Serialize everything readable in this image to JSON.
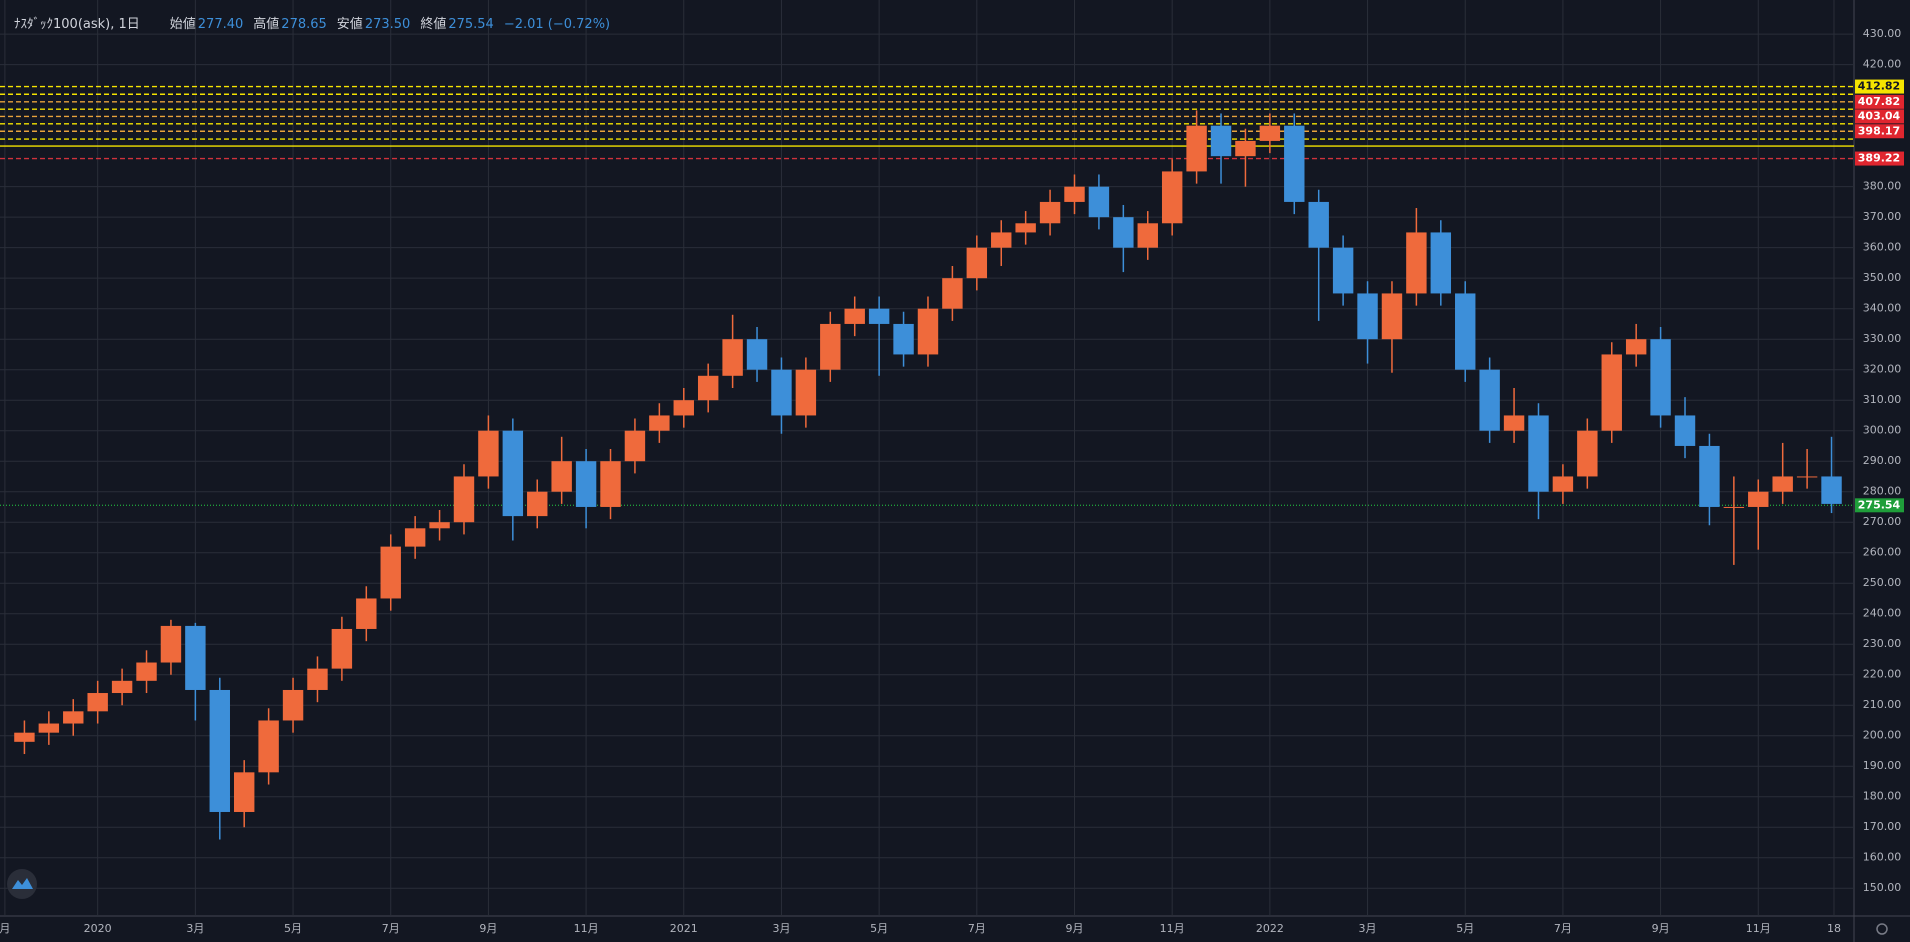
{
  "header": {
    "symbol": "ﾅｽﾀﾞｯｸ100(ask), 1日",
    "ohlc": [
      {
        "label": "始値",
        "value": "277.40"
      },
      {
        "label": "高値",
        "value": "278.65"
      },
      {
        "label": "安値",
        "value": "273.50"
      },
      {
        "label": "終値",
        "value": "275.54"
      }
    ],
    "change": "−2.01 (−0.72%)"
  },
  "chart_data": {
    "type": "candlestick",
    "x": [
      -1.5,
      -1.0,
      -0.5,
      0,
      0.5,
      1.0,
      1.5,
      2.0,
      2.5,
      3.0,
      3.5,
      4.0,
      4.5,
      5.0,
      5.5,
      6.0,
      6.5,
      7.0,
      7.5,
      8.0,
      8.5,
      9.0,
      9.5,
      10.0,
      10.5,
      11.0,
      11.5,
      12.0,
      12.5,
      13.0,
      13.5,
      14.0,
      14.5,
      15.0,
      15.5,
      16.0,
      16.5,
      17.0,
      17.5,
      18.0,
      18.5,
      19.0,
      19.5,
      20.0,
      20.5,
      21.0,
      21.5,
      22.0,
      22.5,
      23.0,
      23.5,
      24.0,
      24.5,
      25.0,
      25.5,
      26.0,
      26.5,
      27.0,
      27.5,
      28.0,
      28.5,
      29.0,
      29.5,
      30.0,
      30.5,
      31.0,
      31.5,
      32.0,
      32.5,
      33.0,
      33.5,
      34.0,
      34.5,
      35.0,
      35.5
    ],
    "open": [
      198,
      201,
      204,
      208,
      214,
      218,
      224,
      236,
      215,
      175,
      188,
      205,
      215,
      222,
      235,
      245,
      262,
      268,
      270,
      285,
      300,
      272,
      280,
      290,
      275,
      290,
      300,
      305,
      310,
      318,
      330,
      320,
      305,
      320,
      335,
      340,
      335,
      325,
      340,
      350,
      360,
      365,
      368,
      375,
      380,
      370,
      360,
      368,
      385,
      400,
      390,
      395,
      400,
      375,
      360,
      345,
      330,
      345,
      365,
      345,
      320,
      300,
      305,
      280,
      285,
      300,
      325,
      330,
      305,
      295,
      275,
      275,
      280,
      285,
      285
    ],
    "high": [
      205,
      208,
      212,
      218,
      222,
      228,
      238,
      237,
      219,
      192,
      209,
      219,
      226,
      239,
      249,
      266,
      272,
      274,
      289,
      305,
      304,
      284,
      298,
      294,
      294,
      304,
      309,
      314,
      322,
      338,
      334,
      324,
      324,
      339,
      344,
      344,
      339,
      344,
      354,
      364,
      369,
      372,
      379,
      384,
      384,
      374,
      372,
      389,
      405,
      404,
      399,
      404,
      404,
      379,
      364,
      349,
      349,
      373,
      369,
      349,
      324,
      314,
      309,
      289,
      304,
      329,
      335,
      334,
      311,
      299,
      285,
      284,
      296,
      294,
      298
    ],
    "low": [
      194,
      197,
      200,
      204,
      210,
      214,
      220,
      205,
      166,
      170,
      184,
      201,
      211,
      218,
      231,
      241,
      258,
      264,
      266,
      281,
      264,
      268,
      276,
      268,
      271,
      286,
      296,
      301,
      306,
      314,
      316,
      299,
      301,
      316,
      331,
      318,
      321,
      321,
      336,
      346,
      354,
      361,
      364,
      371,
      366,
      352,
      356,
      364,
      381,
      381,
      380,
      391,
      371,
      336,
      341,
      322,
      319,
      341,
      341,
      316,
      296,
      296,
      271,
      276,
      281,
      296,
      321,
      301,
      291,
      269,
      256,
      261,
      276,
      281,
      273
    ],
    "close": [
      201,
      204,
      208,
      214,
      218,
      224,
      236,
      215,
      175,
      188,
      205,
      215,
      222,
      235,
      245,
      262,
      268,
      270,
      285,
      300,
      272,
      280,
      290,
      275,
      290,
      300,
      305,
      310,
      318,
      330,
      320,
      305,
      320,
      335,
      340,
      335,
      325,
      340,
      350,
      360,
      365,
      368,
      375,
      380,
      370,
      360,
      368,
      385,
      400,
      390,
      395,
      400,
      375,
      360,
      345,
      330,
      345,
      365,
      345,
      320,
      300,
      305,
      280,
      285,
      300,
      325,
      330,
      305,
      295,
      275,
      275,
      280,
      285,
      285,
      276
    ],
    "up_color": "#ef6a3c",
    "down_color": "#3d8fd9",
    "xlim": [
      -2.0,
      35.96
    ],
    "ylim": [
      140.9,
      441.2
    ],
    "xticks": [
      {
        "value": -1.9,
        "label": "月"
      },
      {
        "value": 0,
        "label": "2020"
      },
      {
        "value": 2,
        "label": "3月"
      },
      {
        "value": 4,
        "label": "5月"
      },
      {
        "value": 6,
        "label": "7月"
      },
      {
        "value": 8,
        "label": "9月"
      },
      {
        "value": 10,
        "label": "11月"
      },
      {
        "value": 12,
        "label": "2021"
      },
      {
        "value": 14,
        "label": "3月"
      },
      {
        "value": 16,
        "label": "5月"
      },
      {
        "value": 18,
        "label": "7月"
      },
      {
        "value": 20,
        "label": "9月"
      },
      {
        "value": 22,
        "label": "11月"
      },
      {
        "value": 24,
        "label": "2022"
      },
      {
        "value": 26,
        "label": "3月"
      },
      {
        "value": 28,
        "label": "5月"
      },
      {
        "value": 30,
        "label": "7月"
      },
      {
        "value": 32,
        "label": "9月"
      },
      {
        "value": 34,
        "label": "11月"
      },
      {
        "value": 35.55,
        "label": "18"
      }
    ],
    "yticks": [
      {
        "value": 150,
        "label": "150.00"
      },
      {
        "value": 160,
        "label": "160.00"
      },
      {
        "value": 170,
        "label": "170.00"
      },
      {
        "value": 180,
        "label": "180.00"
      },
      {
        "value": 190,
        "label": "190.00"
      },
      {
        "value": 200,
        "label": "200.00"
      },
      {
        "value": 210,
        "label": "210.00"
      },
      {
        "value": 220,
        "label": "220.00"
      },
      {
        "value": 230,
        "label": "230.00"
      },
      {
        "value": 240,
        "label": "240.00"
      },
      {
        "value": 250,
        "label": "250.00"
      },
      {
        "value": 260,
        "label": "260.00"
      },
      {
        "value": 270,
        "label": "270.00"
      },
      {
        "value": 280,
        "label": "280.00"
      },
      {
        "value": 290,
        "label": "290.00"
      },
      {
        "value": 300,
        "label": "300.00"
      },
      {
        "value": 310,
        "label": "310.00"
      },
      {
        "value": 320,
        "label": "320.00"
      },
      {
        "value": 330,
        "label": "330.00"
      },
      {
        "value": 340,
        "label": "340.00"
      },
      {
        "value": 350,
        "label": "350.00"
      },
      {
        "value": 360,
        "label": "360.00"
      },
      {
        "value": 370,
        "label": "370.00"
      },
      {
        "value": 380,
        "label": "380.00"
      },
      {
        "value": 420,
        "label": "420.00"
      },
      {
        "value": 430,
        "label": "430.00"
      }
    ],
    "grid": true,
    "price_lines": [
      {
        "value": 412.82,
        "color": "#f5e400",
        "style": "dashed",
        "label_color": "#f5e400",
        "label_text_color": "#131722"
      },
      {
        "value": 410.3,
        "color": "#f5e400",
        "style": "dashed"
      },
      {
        "value": 407.82,
        "color": "#e8a33c",
        "style": "dashed",
        "label_color": "#e0262f",
        "label_text_color": "#ffffff"
      },
      {
        "value": 405.4,
        "color": "#f5e400",
        "style": "dashed"
      },
      {
        "value": 403.04,
        "color": "#e8a33c",
        "style": "dashed",
        "label_color": "#e0262f",
        "label_text_color": "#ffffff"
      },
      {
        "value": 400.6,
        "color": "#f5e400",
        "style": "dashed"
      },
      {
        "value": 398.17,
        "color": "#e8a33c",
        "style": "dashed",
        "label_color": "#e0262f",
        "label_text_color": "#ffffff"
      },
      {
        "value": 395.6,
        "color": "#f5e400",
        "style": "dashed"
      },
      {
        "value": 393.3,
        "color": "#f5e400",
        "style": "solid"
      },
      {
        "value": 389.22,
        "color": "#d0323c",
        "style": "dashed",
        "label_color": "#e0262f",
        "label_text_color": "#ffffff"
      },
      {
        "value": 275.54,
        "color": "#1f9e3a",
        "style": "dotted",
        "label_color": "#1f9e3a",
        "label_text_color": "#ffffff"
      }
    ]
  }
}
